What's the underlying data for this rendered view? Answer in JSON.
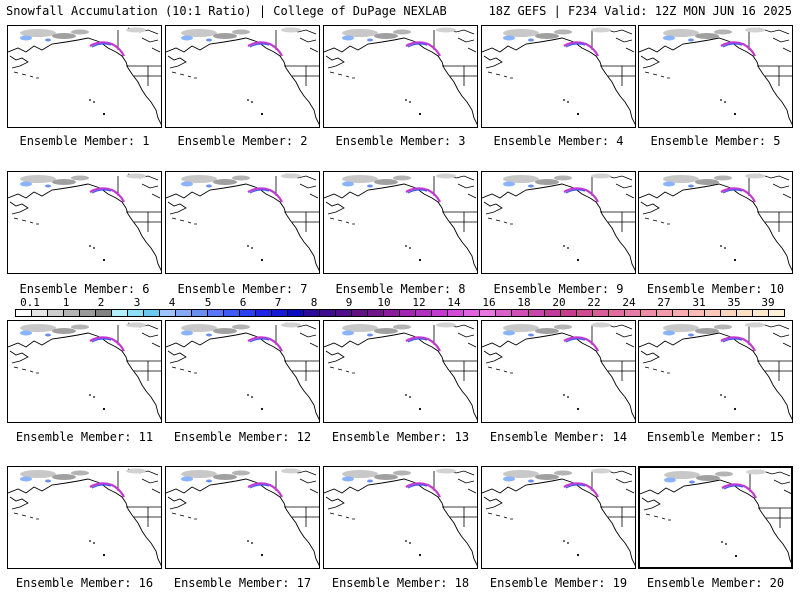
{
  "header": {
    "left": "Snowfall Accumulation (10:1 Ratio) | College of DuPage NEXLAB",
    "right": "18Z GEFS | F234 Valid: 12Z MON JUN 16 2025"
  },
  "members": [
    {
      "label": "Ensemble Member: 1"
    },
    {
      "label": "Ensemble Member: 2"
    },
    {
      "label": "Ensemble Member: 3"
    },
    {
      "label": "Ensemble Member: 4"
    },
    {
      "label": "Ensemble Member: 5"
    },
    {
      "label": "Ensemble Member: 6"
    },
    {
      "label": "Ensemble Member: 7"
    },
    {
      "label": "Ensemble Member: 8"
    },
    {
      "label": "Ensemble Member: 9"
    },
    {
      "label": "Ensemble Member: 10"
    },
    {
      "label": "Ensemble Member: 11"
    },
    {
      "label": "Ensemble Member: 12"
    },
    {
      "label": "Ensemble Member: 13"
    },
    {
      "label": "Ensemble Member: 14"
    },
    {
      "label": "Ensemble Member: 15"
    },
    {
      "label": "Ensemble Member: 16"
    },
    {
      "label": "Ensemble Member: 17"
    },
    {
      "label": "Ensemble Member: 18"
    },
    {
      "label": "Ensemble Member: 19"
    },
    {
      "label": "Ensemble Member: 20"
    }
  ],
  "colorbar": {
    "ticks": [
      "0.1",
      "1",
      "2",
      "3",
      "4",
      "5",
      "6",
      "7",
      "8",
      "9",
      "10",
      "12",
      "14",
      "16",
      "18",
      "20",
      "22",
      "24",
      "27",
      "31",
      "35",
      "39"
    ],
    "colors": [
      "#ffffff",
      "#e6e6e6",
      "#cdcdcd",
      "#b4b4b4",
      "#9b9b9b",
      "#828282",
      "#b3f0ff",
      "#8ddff5",
      "#6ac8f0",
      "#9fc3ff",
      "#86a9f7",
      "#6a8ff0",
      "#5a75ff",
      "#3f5af5",
      "#2a3ff0",
      "#1f24e6",
      "#141ad6",
      "#0a0abf",
      "#2d0a99",
      "#3e0c8c",
      "#4f0f8a",
      "#601282",
      "#71168a",
      "#8a1d9c",
      "#a126b0",
      "#b230c0",
      "#c43ad0",
      "#d44bd9",
      "#e062e0",
      "#e878dd",
      "#d860c8",
      "#d050b8",
      "#c846a8",
      "#c03c98",
      "#c83c8c",
      "#d04c90",
      "#d85c98",
      "#e06ca0",
      "#e87ca8",
      "#ef8ca8",
      "#f49cac",
      "#f8acb0",
      "#fabcb4",
      "#fcc8b8",
      "#fdd4bc",
      "#fee0c4",
      "#ffe8cc",
      "#fff0d8"
    ]
  }
}
